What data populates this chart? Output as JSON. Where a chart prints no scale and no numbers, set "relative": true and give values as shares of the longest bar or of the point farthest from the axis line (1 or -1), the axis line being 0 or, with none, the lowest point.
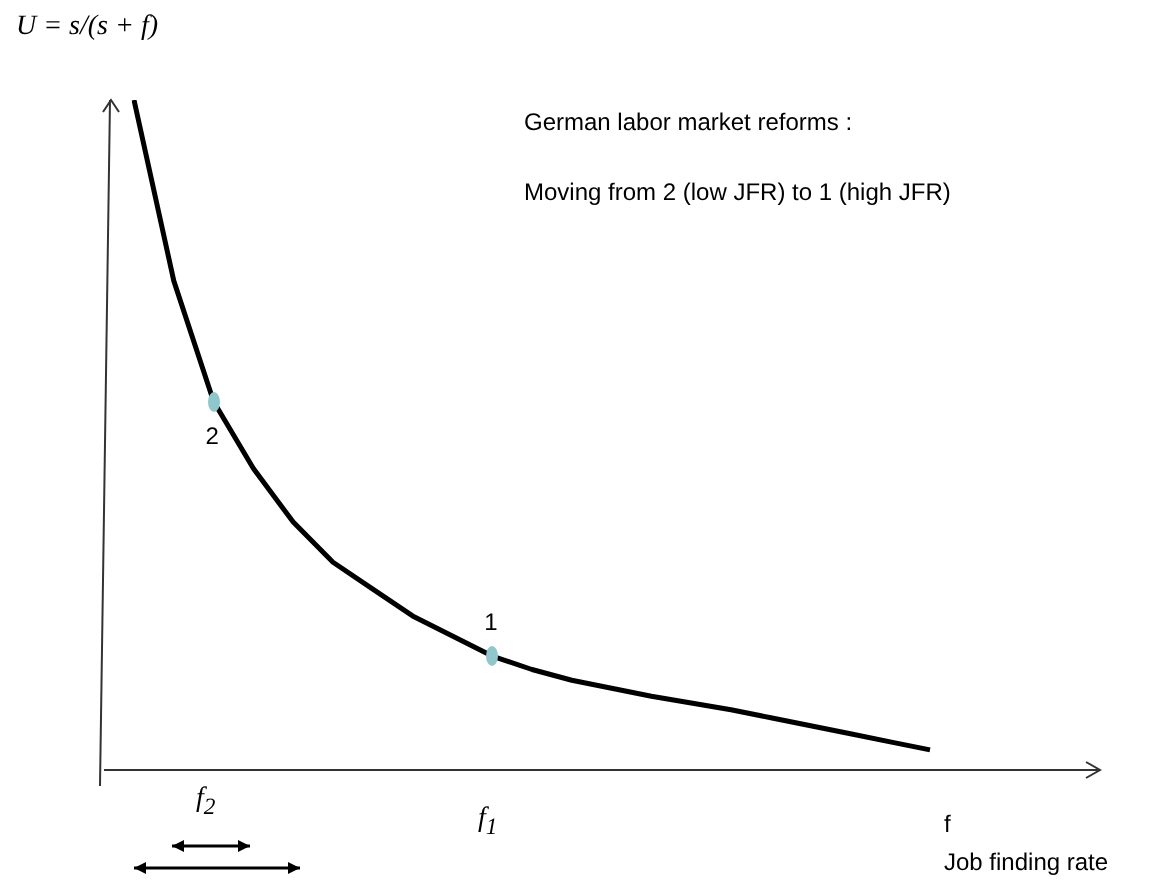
{
  "chart_data": {
    "type": "line",
    "relative": true,
    "title": "German labor market reforms :",
    "subtitle": "Moving from 2 (low JFR) to 1 (high JFR)",
    "ylabel": "U = s/(s + f)",
    "xlabel": "f",
    "annotations": [
      "Job finding rate",
      {
        "text": "2",
        "y": 0.55
      },
      {
        "text": "1",
        "y": 0.17
      },
      "f$_{2}$",
      "f$_{1}$"
    ],
    "categories": [
      null,
      null,
      null,
      null,
      null,
      null,
      null,
      null,
      null,
      null,
      null,
      null,
      null,
      null,
      null,
      null,
      null,
      null,
      null,
      null,
      null
    ],
    "legend": false,
    "grid": false,
    "marker": "none",
    "series": [
      {
        "color": "#000000",
        "values": [
          1.0,
          0.73,
          0.55,
          0.45,
          0.37,
          0.31,
          0.27,
          0.23,
          0.2,
          0.17,
          0.15,
          0.134,
          0.122,
          0.11,
          0.1,
          0.09,
          0.078,
          0.066,
          0.054,
          0.042,
          0.03
        ]
      }
    ]
  }
}
